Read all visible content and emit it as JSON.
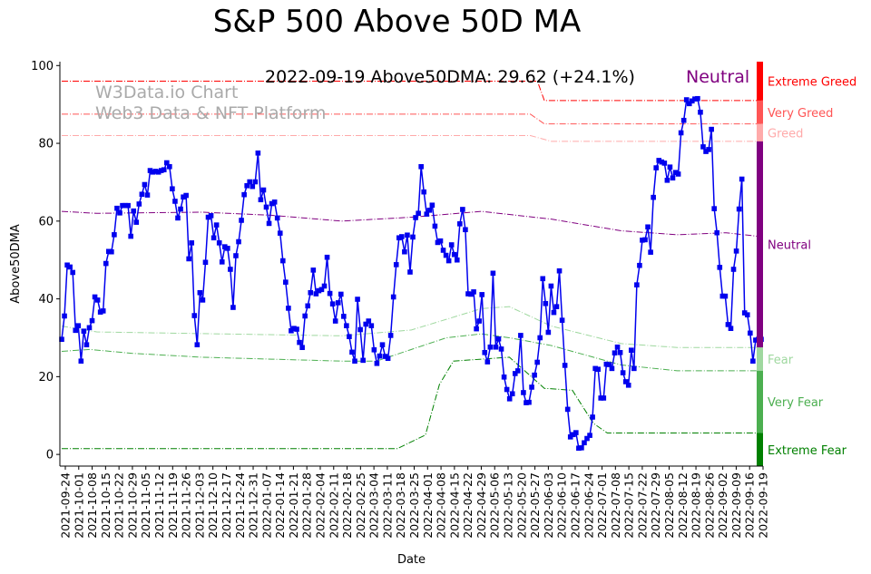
{
  "chart_data": {
    "type": "line",
    "title": "S&P 500 Above 50D MA",
    "xlabel": "Date",
    "ylabel": "Above50DMA",
    "ylim": [
      -3,
      101
    ],
    "grid": false,
    "yticks": [
      0,
      20,
      40,
      60,
      80,
      100
    ],
    "xticks": [
      "2021-09-24",
      "2021-10-01",
      "2021-10-08",
      "2021-10-15",
      "2021-10-22",
      "2021-10-29",
      "2021-11-05",
      "2021-11-12",
      "2021-11-19",
      "2021-11-26",
      "2021-12-03",
      "2021-12-10",
      "2021-12-17",
      "2021-12-24",
      "2021-12-31",
      "2022-01-07",
      "2022-01-14",
      "2022-01-21",
      "2022-01-28",
      "2022-02-04",
      "2022-02-11",
      "2022-02-18",
      "2022-02-25",
      "2022-03-04",
      "2022-03-11",
      "2022-03-18",
      "2022-03-25",
      "2022-04-01",
      "2022-04-08",
      "2022-04-15",
      "2022-04-22",
      "2022-04-29",
      "2022-05-06",
      "2022-05-13",
      "2022-05-20",
      "2022-05-27",
      "2022-06-03",
      "2022-06-10",
      "2022-06-17",
      "2022-06-24",
      "2022-07-01",
      "2022-07-08",
      "2022-07-15",
      "2022-07-22",
      "2022-07-29",
      "2022-08-05",
      "2022-08-12",
      "2022-08-19",
      "2022-08-26",
      "2022-09-02",
      "2022-09-09",
      "2022-09-16",
      "2022-09-19"
    ],
    "annotation": "2022-09-19 Above50DMA: 29.62 (+24.1%)",
    "status_label": "Neutral",
    "watermark": [
      "W3Data.io Chart",
      "Web3 Data & NFT Platform"
    ],
    "series": [
      {
        "name": "Above50DMA",
        "color": "#0000ee",
        "values": [
          29.6,
          35.6,
          48.7,
          48.2,
          46.8,
          31.9,
          33.1,
          24,
          31.7,
          28.2,
          32.6,
          34.4,
          40.5,
          39.7,
          36.6,
          36.9,
          49.1,
          52.2,
          52.1,
          56.5,
          63.3,
          62.1,
          64,
          64,
          64,
          56.1,
          62.6,
          59.7,
          64.4,
          66.9,
          69.4,
          66.7,
          73,
          72.6,
          72.8,
          72.6,
          73,
          73.2,
          75,
          74,
          68.3,
          65.1,
          60.8,
          63.1,
          66.2,
          66.6,
          50.3,
          54.4,
          35.7,
          28.2,
          41.6,
          39.7,
          49.4,
          61,
          61.4,
          55.7,
          59,
          54.4,
          49.5,
          53.4,
          53,
          47.6,
          37.8,
          51.1,
          54.7,
          60.2,
          66.8,
          69.1,
          70.1,
          68.9,
          70.1,
          77.5,
          65.5,
          68,
          63.6,
          59.4,
          64.5,
          64.9,
          60.8,
          56.9,
          49.8,
          44.3,
          37.6,
          31.8,
          32.4,
          32.2,
          28.8,
          27.5,
          35.6,
          38.2,
          41.6,
          47.4,
          41.3,
          42.1,
          42.4,
          43.3,
          50.7,
          41.4,
          38.7,
          34.3,
          39,
          41.2,
          35.5,
          33.1,
          30.3,
          26.3,
          24,
          39.9,
          32.1,
          24.2,
          33.5,
          34.3,
          33.1,
          26.9,
          23.4,
          25.3,
          28.2,
          25.2,
          24.7,
          30.6,
          40.5,
          48.8,
          55.7,
          56,
          52.1,
          56.4,
          46.9,
          55.9,
          60.9,
          62,
          74,
          67.5,
          61.8,
          62.8,
          64.1,
          58.7,
          54.5,
          54.9,
          52.5,
          51.2,
          49.8,
          53.9,
          51.4,
          50,
          59.3,
          63,
          57.8,
          41.3,
          41.2,
          41.8,
          32.3,
          34.3,
          41.1,
          26.2,
          23.8,
          27.6,
          46.6,
          27.6,
          29.7,
          27.1,
          19.9,
          16.7,
          14.3,
          15.6,
          20.8,
          21.5,
          30.6,
          15.9,
          13.3,
          13.4,
          17.3,
          20.4,
          23.7,
          30,
          45.2,
          38.8,
          31.4,
          43.3,
          36.5,
          38,
          47.2,
          34.5,
          22.9,
          11.6,
          4.5,
          5.1,
          5.6,
          1.6,
          1.7,
          3,
          4.1,
          4.9,
          9.6,
          22.1,
          21.9,
          14.5,
          14.5,
          23.2,
          23.1,
          22.1,
          26.1,
          27.6,
          26.2,
          21,
          18.7,
          17.8,
          26.8,
          22.1,
          43.6,
          48.6,
          55.1,
          55.2,
          58.5,
          52,
          66.1,
          73.7,
          75.6,
          75.2,
          74.9,
          70.5,
          73.9,
          71.1,
          72.5,
          72.1,
          82.7,
          85.9,
          91.2,
          90.2,
          90.9,
          91.4,
          91.5,
          88,
          79.1,
          77.9,
          78.4,
          83.6,
          63.2,
          57,
          48.1,
          40.7,
          40.7,
          33.4,
          32.4,
          47.6,
          52.3,
          63.1,
          70.8,
          36.4,
          35.9,
          31.2,
          24,
          29.4,
          29.6,
          29.6
        ]
      }
    ],
    "bands": [
      {
        "name": "Extreme Greed",
        "color": "#ff0000",
        "range": [
          91,
          101
        ]
      },
      {
        "name": "Very Greed",
        "color": "#ff5555",
        "range": [
          85,
          91
        ]
      },
      {
        "name": "Greed",
        "color": "#ffaaaa",
        "range": [
          80.5,
          85
        ]
      },
      {
        "name": "Neutral",
        "color": "#800080",
        "range": [
          27.5,
          80.5
        ]
      },
      {
        "name": "Fear",
        "color": "#9fd89f",
        "range": [
          21.5,
          27.5
        ]
      },
      {
        "name": "Very Fear",
        "color": "#4caf50",
        "range": [
          5.5,
          21.5
        ]
      },
      {
        "name": "Extreme Fear",
        "color": "#008000",
        "range": [
          -3,
          5.5
        ]
      }
    ],
    "threshold_lines": [
      {
        "name": "Extreme Greed",
        "color": "#ff0000",
        "points": [
          [
            0,
            96
          ],
          [
            0.68,
            96
          ],
          [
            0.69,
            91
          ],
          [
            1,
            91
          ]
        ]
      },
      {
        "name": "Very Greed",
        "color": "#ff5555",
        "points": [
          [
            0,
            87.5
          ],
          [
            0.67,
            87.5
          ],
          [
            0.69,
            85
          ],
          [
            1,
            85
          ]
        ]
      },
      {
        "name": "Greed",
        "color": "#ffaaaa",
        "points": [
          [
            0,
            82
          ],
          [
            0.67,
            82
          ],
          [
            0.7,
            80.5
          ],
          [
            1,
            80.5
          ]
        ]
      },
      {
        "name": "Neutral",
        "color": "#800080",
        "points": [
          [
            0,
            62.5
          ],
          [
            0.05,
            62
          ],
          [
            0.2,
            62.3
          ],
          [
            0.3,
            61.5
          ],
          [
            0.4,
            60
          ],
          [
            0.5,
            61
          ],
          [
            0.6,
            62.5
          ],
          [
            0.7,
            60.5
          ],
          [
            0.8,
            57.5
          ],
          [
            0.88,
            56.5
          ],
          [
            0.95,
            57
          ],
          [
            1,
            56
          ]
        ]
      },
      {
        "name": "Fear",
        "color": "#9fd89f",
        "points": [
          [
            0,
            33
          ],
          [
            0.05,
            31.5
          ],
          [
            0.4,
            30.5
          ],
          [
            0.5,
            32
          ],
          [
            0.6,
            37.5
          ],
          [
            0.64,
            38
          ],
          [
            0.7,
            33
          ],
          [
            0.8,
            28.5
          ],
          [
            0.88,
            27.5
          ],
          [
            1,
            27.5
          ]
        ]
      },
      {
        "name": "Very Fear",
        "color": "#4caf50",
        "points": [
          [
            0,
            26.5
          ],
          [
            0.04,
            27
          ],
          [
            0.1,
            26
          ],
          [
            0.2,
            25
          ],
          [
            0.3,
            24.5
          ],
          [
            0.4,
            24
          ],
          [
            0.45,
            24
          ],
          [
            0.5,
            27
          ],
          [
            0.55,
            30
          ],
          [
            0.6,
            31
          ],
          [
            0.64,
            30
          ],
          [
            0.7,
            28
          ],
          [
            0.8,
            23
          ],
          [
            0.88,
            21.5
          ],
          [
            1,
            21.5
          ]
        ]
      },
      {
        "name": "Extreme Fear",
        "color": "#008000",
        "points": [
          [
            0,
            1.5
          ],
          [
            0.48,
            1.5
          ],
          [
            0.52,
            5
          ],
          [
            0.54,
            18
          ],
          [
            0.56,
            24
          ],
          [
            0.6,
            24.5
          ],
          [
            0.64,
            25
          ],
          [
            0.69,
            17
          ],
          [
            0.73,
            16.5
          ],
          [
            0.76,
            8
          ],
          [
            0.78,
            5.5
          ],
          [
            1,
            5.5
          ]
        ]
      }
    ]
  }
}
